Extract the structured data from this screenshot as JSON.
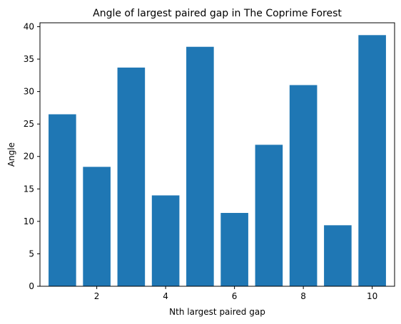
{
  "chart_data": {
    "type": "bar",
    "title": "Angle of largest paired gap in The Coprime Forest",
    "xlabel": "Nth largest paired gap",
    "ylabel": "Angle",
    "x": [
      1,
      2,
      3,
      4,
      5,
      6,
      7,
      8,
      9,
      10
    ],
    "values": [
      26.5,
      18.4,
      33.7,
      14.0,
      36.9,
      11.3,
      21.8,
      31.0,
      9.4,
      38.7
    ],
    "xlim": [
      0.35,
      10.65
    ],
    "ylim": [
      0,
      40.6
    ],
    "xticks": [
      2,
      4,
      6,
      8,
      10
    ],
    "yticks": [
      0,
      5,
      10,
      15,
      20,
      25,
      30,
      35,
      40
    ],
    "bar_color": "#1f77b4",
    "grid": false,
    "legend": "none"
  }
}
